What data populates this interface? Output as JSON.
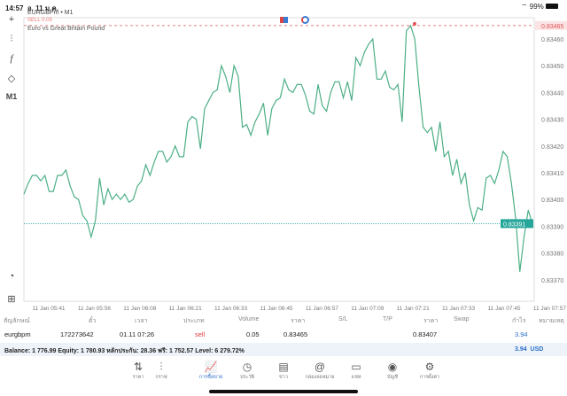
{
  "status_bar": {
    "time": "14:57",
    "date": "อ. 11 ม.ค.",
    "battery": "99%"
  },
  "chart": {
    "symbol": "EURGBPm • M1",
    "description": "Euro vs Great Britain Pound",
    "sell_label": "SELL 0.05",
    "line_color": "#4caf85",
    "sell_color": "#e05555",
    "bid_color": "#26a69a"
  },
  "toolbar": [
    "crosshair-icon",
    "candles-icon",
    "indicator-f-icon",
    "objects-icon"
  ],
  "timeframe": "M1",
  "chart_data": {
    "type": "line",
    "y_ticks": [
      "0.83460",
      "0.83450",
      "0.83440",
      "0.83430",
      "0.83420",
      "0.83410",
      "0.83400",
      "0.83390",
      "0.83380",
      "0.83370"
    ],
    "ylim": [
      0.83358,
      0.83468
    ],
    "x_ticks": [
      "11 Jan 05:41",
      "11 Jan 05:56",
      "11 Jan 06:08",
      "11 Jan 06:21",
      "11 Jan 06:33",
      "11 Jan 06:45",
      "11 Jan 06:57",
      "11 Jan 07:09",
      "11 Jan 07:21",
      "11 Jan 07:33",
      "11 Jan 07:45",
      "11 Jan 07:57"
    ],
    "sell_price": "0.83465",
    "bid_price": "0.83391",
    "values": [
      0.83402,
      0.83406,
      0.83409,
      0.83409,
      0.83407,
      0.83409,
      0.83403,
      0.83403,
      0.83409,
      0.83409,
      0.83411,
      0.83405,
      0.83401,
      0.834,
      0.83394,
      0.83392,
      0.83386,
      0.83392,
      0.83408,
      0.83398,
      0.83404,
      0.834,
      0.83402,
      0.834,
      0.83402,
      0.83399,
      0.834,
      0.83405,
      0.83407,
      0.83413,
      0.83409,
      0.83414,
      0.83418,
      0.83418,
      0.83414,
      0.83416,
      0.8342,
      0.83416,
      0.83416,
      0.83429,
      0.83431,
      0.8343,
      0.83419,
      0.83434,
      0.83437,
      0.8344,
      0.83441,
      0.8345,
      0.83446,
      0.8344,
      0.8345,
      0.83446,
      0.83427,
      0.83428,
      0.83424,
      0.83429,
      0.83432,
      0.83436,
      0.83424,
      0.83434,
      0.83437,
      0.83438,
      0.83445,
      0.83441,
      0.8344,
      0.83443,
      0.83443,
      0.83439,
      0.83433,
      0.83432,
      0.83443,
      0.83435,
      0.83433,
      0.8344,
      0.83444,
      0.83444,
      0.83438,
      0.83444,
      0.83437,
      0.83453,
      0.8345,
      0.83455,
      0.83458,
      0.8346,
      0.83445,
      0.83445,
      0.83448,
      0.83442,
      0.83441,
      0.83443,
      0.83429,
      0.83463,
      0.83465,
      0.8346,
      0.83442,
      0.83427,
      0.83425,
      0.83427,
      0.83418,
      0.83429,
      0.83416,
      0.83418,
      0.83409,
      0.83415,
      0.83406,
      0.8341,
      0.83398,
      0.83392,
      0.83397,
      0.83396,
      0.83408,
      0.83409,
      0.83406,
      0.83411,
      0.83418,
      0.83416,
      0.83406,
      0.83393,
      0.83373,
      0.83386,
      0.83396,
      0.83391
    ]
  },
  "table": {
    "headers": [
      "สัญลักษณ์",
      "ตั๋ว",
      "เวลา",
      "ประเภท",
      "Volume",
      "ราคา",
      "S/L",
      "T/P",
      "ราคา",
      "Swap",
      "กำไร",
      "หมายเหตุ"
    ],
    "row": {
      "symbol": "eurgbpm",
      "ticket": "172273642",
      "time": "01.11 07:26",
      "type": "sell",
      "volume": "0.05",
      "open_price": "0.83465",
      "sl": "",
      "tp": "",
      "price": "0.83407",
      "swap": "",
      "profit": "3.94",
      "comment": ""
    }
  },
  "balance": {
    "text": "Balance: 1 776.99 Equity: 1 780.93 หลักประกัน: 28.36 ฟรี: 1 752.57 Level: 6 279.72%",
    "profit": "3.94",
    "currency": "USD"
  },
  "tabs": [
    {
      "label": "ราคา",
      "icon": "⇅"
    },
    {
      "label": "กราฟ",
      "icon": "⫶"
    },
    {
      "label": "การซื้อขาย",
      "icon": "📈"
    },
    {
      "label": "ประวัติ",
      "icon": "◷"
    },
    {
      "label": "ข่าว",
      "icon": "▤"
    },
    {
      "label": "กล่องจดหมาย",
      "icon": "@"
    },
    {
      "label": "แชท",
      "icon": "▭"
    },
    {
      "label": "บัญชี",
      "icon": "◉"
    },
    {
      "label": "การตั้งค่า",
      "icon": "⚙"
    }
  ]
}
